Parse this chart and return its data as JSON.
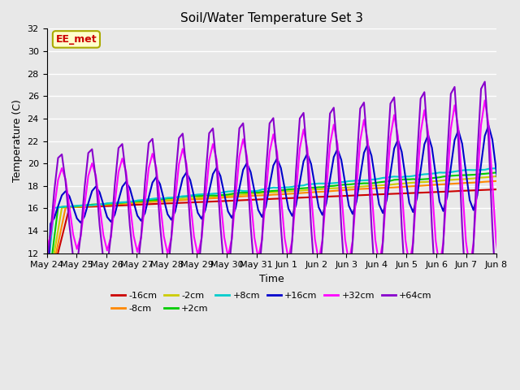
{
  "title": "Soil/Water Temperature Set 3",
  "xlabel": "Time",
  "ylabel": "Temperature (C)",
  "ylim": [
    12,
    32
  ],
  "yticks": [
    12,
    14,
    16,
    18,
    20,
    22,
    24,
    26,
    28,
    30,
    32
  ],
  "x_labels": [
    "May 24",
    "May 25",
    "May 26",
    "May 27",
    "May 28",
    "May 29",
    "May 30",
    "May 31",
    "Jun 1",
    "Jun 2",
    "Jun 3",
    "Jun 4",
    "Jun 5",
    "Jun 6",
    "Jun 7",
    "Jun 8"
  ],
  "annotation_text": "EE_met",
  "annotation_bg": "#ffffcc",
  "annotation_border": "#aaaa00",
  "annotation_fg": "#cc0000",
  "plot_bg": "#e8e8e8",
  "series": [
    {
      "label": "-16cm",
      "color": "#cc0000",
      "linewidth": 1.5
    },
    {
      "label": "-8cm",
      "color": "#ff8800",
      "linewidth": 1.5
    },
    {
      "label": "-2cm",
      "color": "#cccc00",
      "linewidth": 1.5
    },
    {
      "label": "+2cm",
      "color": "#00cc00",
      "linewidth": 1.5
    },
    {
      "label": "+8cm",
      "color": "#00cccc",
      "linewidth": 1.5
    },
    {
      "label": "+16cm",
      "color": "#0000cc",
      "linewidth": 1.5
    },
    {
      "label": "+32cm",
      "color": "#ff00ff",
      "linewidth": 1.5
    },
    {
      "label": "+64cm",
      "color": "#8800cc",
      "linewidth": 1.5
    }
  ]
}
